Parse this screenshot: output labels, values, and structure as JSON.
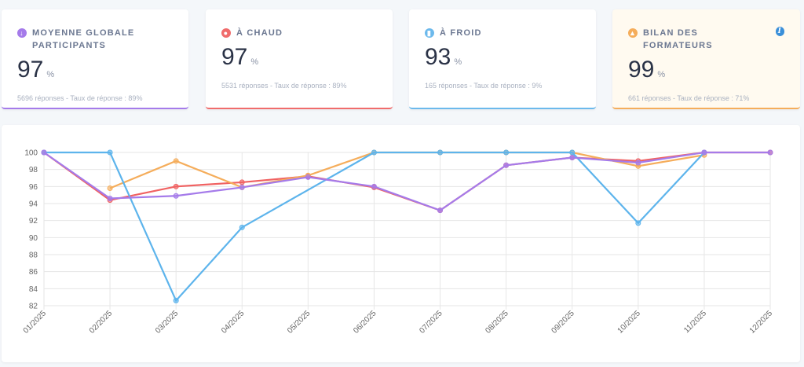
{
  "cards": [
    {
      "title": "Moyenne globale participants",
      "value": "97",
      "unit": "%",
      "sub": "5696 réponses - Taux de réponse : 89%",
      "icon": "thermometer-icon",
      "color": "#a57bea"
    },
    {
      "title": "À chaud",
      "value": "97",
      "unit": "%",
      "sub": "5531 réponses - Taux de réponse : 89%",
      "icon": "flame-drop-icon",
      "color": "#f06c6c"
    },
    {
      "title": "À froid",
      "value": "93",
      "unit": "%",
      "sub": "165 réponses - Taux de réponse : 9%",
      "icon": "thermometer-cold-icon",
      "color": "#6cb9ec"
    },
    {
      "title": "Bilan des formateurs",
      "value": "99",
      "unit": "%",
      "sub": "661 réponses - Taux de réponse : 71%",
      "icon": "teacher-icon",
      "color": "#f5ad5b",
      "info": "i"
    }
  ],
  "chart_data": {
    "type": "line",
    "categories": [
      "01/2025",
      "02/2025",
      "03/2025",
      "04/2025",
      "05/2025",
      "06/2025",
      "07/2025",
      "08/2025",
      "09/2025",
      "10/2025",
      "11/2025",
      "12/2025"
    ],
    "ylim": [
      82,
      100
    ],
    "yticks": [
      82,
      84,
      86,
      88,
      90,
      92,
      94,
      96,
      98,
      100
    ],
    "grid": true,
    "series": [
      {
        "key": "chaud",
        "color": "#f06262",
        "values": [
          100,
          94.4,
          96,
          96.5,
          97.2,
          95.9,
          93.2,
          98.5,
          99.4,
          99,
          100,
          100
        ]
      },
      {
        "key": "formateurs",
        "color": "#f5ad5b",
        "values": [
          null,
          95.8,
          99,
          95.9,
          97.3,
          100,
          100,
          100,
          100,
          98.4,
          99.7,
          null
        ]
      },
      {
        "key": "froid",
        "color": "#5db4ec",
        "values": [
          100,
          100,
          82.6,
          91.2,
          null,
          100,
          100,
          100,
          100,
          91.7,
          100,
          null
        ]
      },
      {
        "key": "global",
        "color": "#a57bea",
        "values": [
          100,
          94.6,
          94.9,
          95.9,
          97.1,
          96,
          93.2,
          98.5,
          99.4,
          98.8,
          100,
          100
        ]
      }
    ]
  }
}
